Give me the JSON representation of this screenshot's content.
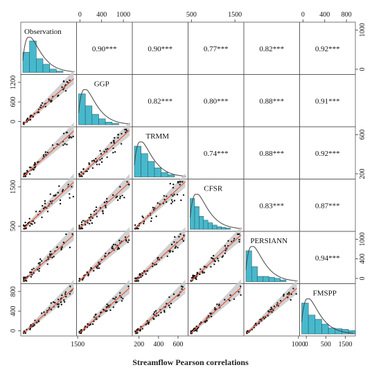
{
  "chart_data": {
    "type": "scatterplot-matrix",
    "title": "Streamflow Pearson correlations",
    "variables": [
      "Observation",
      "GGP",
      "TRMM",
      "CFSR",
      "PERSIANN",
      "FMSPP"
    ],
    "colors": {
      "histogram": "#47b9cc",
      "density": "#444444",
      "fit_line": "#e8553e",
      "ci_band": "#c9c9c9",
      "points": "#111111"
    },
    "correlations": [
      {
        "row": "Observation",
        "col": "GGP",
        "label": "0.90***",
        "r": 0.9
      },
      {
        "row": "Observation",
        "col": "TRMM",
        "label": "0.90***",
        "r": 0.9
      },
      {
        "row": "Observation",
        "col": "CFSR",
        "label": "0.77***",
        "r": 0.77
      },
      {
        "row": "Observation",
        "col": "PERSIANN",
        "label": "0.82***",
        "r": 0.82
      },
      {
        "row": "Observation",
        "col": "FMSPP",
        "label": "0.92***",
        "r": 0.92
      },
      {
        "row": "GGP",
        "col": "TRMM",
        "label": "0.82***",
        "r": 0.82
      },
      {
        "row": "GGP",
        "col": "CFSR",
        "label": "0.80***",
        "r": 0.8
      },
      {
        "row": "GGP",
        "col": "PERSIANN",
        "label": "0.88***",
        "r": 0.88
      },
      {
        "row": "GGP",
        "col": "FMSPP",
        "label": "0.91***",
        "r": 0.91
      },
      {
        "row": "TRMM",
        "col": "CFSR",
        "label": "0.74***",
        "r": 0.74
      },
      {
        "row": "TRMM",
        "col": "PERSIANN",
        "label": "0.88***",
        "r": 0.88
      },
      {
        "row": "TRMM",
        "col": "FMSPP",
        "label": "0.92***",
        "r": 0.92
      },
      {
        "row": "CFSR",
        "col": "PERSIANN",
        "label": "0.83***",
        "r": 0.83
      },
      {
        "row": "CFSR",
        "col": "FMSPP",
        "label": "0.87***",
        "r": 0.87
      },
      {
        "row": "PERSIANN",
        "col": "FMSPP",
        "label": "0.94***",
        "r": 0.94
      }
    ],
    "histograms": {
      "Observation": [
        0.62,
        0.97,
        0.42,
        0.25,
        0.1,
        0.04
      ],
      "GGP": [
        0.95,
        0.58,
        0.32,
        0.18,
        0.08,
        0.04
      ],
      "TRMM": [
        0.95,
        0.72,
        0.48,
        0.28,
        0.14,
        0.07
      ],
      "CFSR": [
        0.95,
        0.7,
        0.4,
        0.28,
        0.2,
        0.13,
        0.08,
        0.06,
        0.04
      ],
      "PERSIANN": [
        0.95,
        0.46,
        0.16,
        0.16,
        0.13,
        0.1,
        0.05
      ],
      "FMSPP": [
        0.95,
        0.58,
        0.45,
        0.3,
        0.18,
        0.16,
        0.14,
        0.1
      ]
    },
    "axes": [
      {
        "variable": "FMSPP",
        "side": "bottom",
        "ticks": [
          "0",
          "500",
          "1500"
        ]
      },
      {
        "variable": "GGP",
        "side": "bottom",
        "ticks": [
          "1500"
        ]
      },
      {
        "variable": "TRMM",
        "side": "bottom",
        "ticks": [
          "200",
          "400",
          "600"
        ]
      },
      {
        "variable": "PERSIANN",
        "side": "bottom",
        "ticks": [
          "1000"
        ]
      },
      {
        "variable": "GGP",
        "side": "top",
        "ticks": [
          "0",
          "400",
          "1000"
        ]
      },
      {
        "variable": "CFSR",
        "side": "top",
        "ticks": [
          "500",
          "1500"
        ]
      },
      {
        "variable": "FMSPP",
        "side": "top",
        "ticks": [
          "0",
          "400",
          "800"
        ]
      },
      {
        "variable": "GGP",
        "side": "left",
        "ticks": [
          "0",
          "600",
          "1200"
        ]
      },
      {
        "variable": "CFSR",
        "side": "left",
        "ticks": [
          "500",
          "1500"
        ]
      },
      {
        "variable": "FMSPP",
        "side": "left",
        "ticks": [
          "0",
          "400",
          "800"
        ]
      },
      {
        "variable": "Observation",
        "side": "right",
        "ticks": [
          "0",
          "1000"
        ]
      },
      {
        "variable": "TRMM",
        "side": "right",
        "ticks": [
          "200",
          "600"
        ]
      },
      {
        "variable": "PERSIANN",
        "side": "right",
        "ticks": [
          "0",
          "400",
          "1000"
        ]
      }
    ]
  }
}
